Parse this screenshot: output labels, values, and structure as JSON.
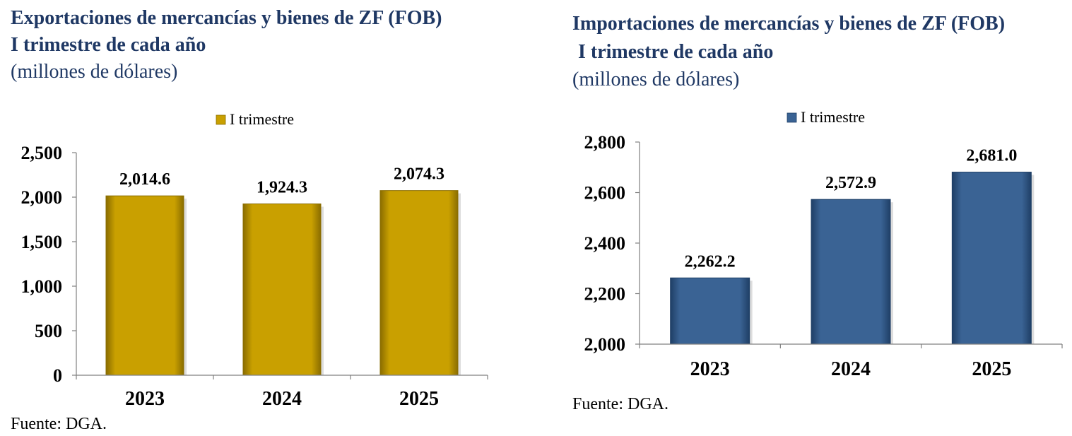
{
  "charts": {
    "left": {
      "title_line1": "Exportaciones de mercancías y bienes de ZF (FOB)",
      "title_line2": "I trimestre de cada año",
      "units": "(millones de dólares)",
      "source": "Fuente: DGA.",
      "colors": {
        "bar": "#c9a000",
        "bar_edge": "#8a6d00",
        "legend_swatch": "#c9a000"
      },
      "chart_data": {
        "type": "bar",
        "categories": [
          "2023",
          "2024",
          "2025"
        ],
        "series": [
          {
            "name": "I trimestre",
            "values": [
              2014.6,
              1924.3,
              2074.3
            ]
          }
        ],
        "value_labels": [
          "2,014.6",
          "1,924.3",
          "2,074.3"
        ],
        "ylim": [
          0,
          2500
        ],
        "yticks": [
          0,
          500,
          1000,
          1500,
          2000,
          2500
        ],
        "ytick_labels": [
          "0",
          "500",
          "1,000",
          "1,500",
          "2,000",
          "2,500"
        ],
        "legend": "top-center",
        "grid": false
      }
    },
    "right": {
      "title_line1": "Importaciones de mercancías y bienes de ZF (FOB)",
      "title_line2": "I trimestre de cada año",
      "units": "(millones de dólares)",
      "source": "Fuente: DGA.",
      "colors": {
        "bar": "#3a6394",
        "bar_edge": "#1f3f66",
        "legend_swatch": "#3a6394"
      },
      "chart_data": {
        "type": "bar",
        "categories": [
          "2023",
          "2024",
          "2025"
        ],
        "series": [
          {
            "name": "I trimestre",
            "values": [
              2262.2,
              2572.9,
              2681.0
            ]
          }
        ],
        "value_labels": [
          "2,262.2",
          "2,572.9",
          "2,681.0"
        ],
        "ylim": [
          2000,
          2800
        ],
        "yticks": [
          2000,
          2200,
          2400,
          2600,
          2800
        ],
        "ytick_labels": [
          "2,000",
          "2,200",
          "2,400",
          "2,600",
          "2,800"
        ],
        "legend": "top-center",
        "grid": false
      }
    }
  }
}
